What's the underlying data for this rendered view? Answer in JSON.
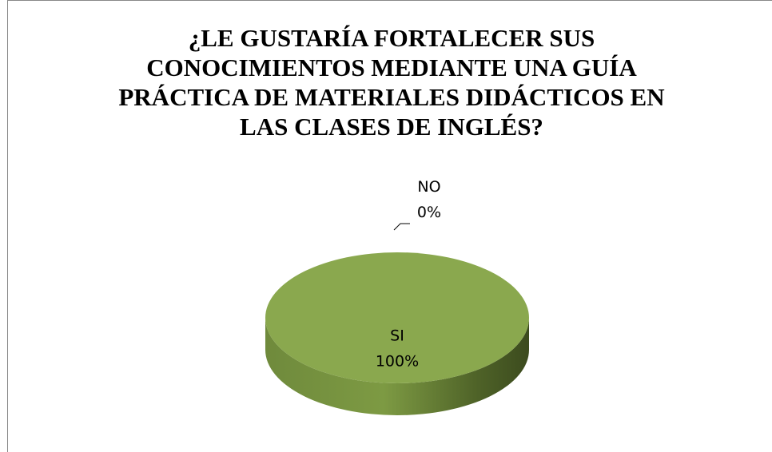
{
  "chart_data": {
    "type": "pie",
    "title": [
      "¿LE GUSTARÍA FORTALECER SUS",
      "CONOCIMIENTOS MEDIANTE  UNA GUÍA",
      "PRÁCTICA DE  MATERIALES DIDÁCTICOS EN",
      "LAS CLASES DE INGLÉS?"
    ],
    "categories": [
      "SI",
      "NO"
    ],
    "values": [
      100,
      0
    ],
    "value_labels": [
      "100%",
      "0%"
    ],
    "colors": [
      "#8aa84e",
      "#4f81bd"
    ],
    "three_d": true
  }
}
